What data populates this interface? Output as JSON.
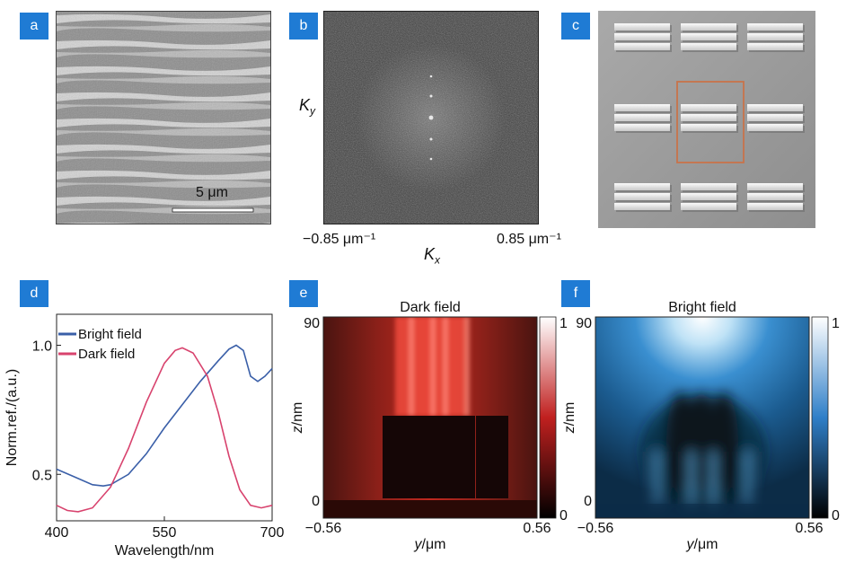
{
  "panels": {
    "a": {
      "tag": "a",
      "scale_bar_label": "5 μm"
    },
    "b": {
      "tag": "b",
      "ky_label": "K",
      "ky_sub": "y",
      "kx_label": "K",
      "kx_sub": "x",
      "kx_min": "−0.85 μm⁻¹",
      "kx_max": "0.85 μm⁻¹"
    },
    "c": {
      "tag": "c",
      "highlight_color": "#c8734a"
    },
    "d": {
      "tag": "d"
    },
    "e": {
      "tag": "e"
    },
    "f": {
      "tag": "f"
    }
  },
  "chart_data": [
    {
      "type": "line",
      "panel": "d",
      "xlabel": "Wavelength/nm",
      "ylabel": "Norm.ref./(a.u.)",
      "xlim": [
        400,
        700
      ],
      "ylim": [
        0.32,
        1.12
      ],
      "xticks": [
        "400",
        "550",
        "700"
      ],
      "yticks": [
        "0.5",
        "1.0"
      ],
      "legend_position": "top-left",
      "series": [
        {
          "name": "Bright field",
          "color": "#3a5fa8",
          "x": [
            400,
            425,
            450,
            465,
            475,
            500,
            525,
            550,
            575,
            600,
            625,
            640,
            650,
            660,
            670,
            680,
            690,
            700
          ],
          "y": [
            0.52,
            0.49,
            0.46,
            0.455,
            0.46,
            0.5,
            0.58,
            0.68,
            0.77,
            0.86,
            0.94,
            0.985,
            1.0,
            0.98,
            0.88,
            0.86,
            0.88,
            0.91
          ]
        },
        {
          "name": "Dark field",
          "color": "#d8436e",
          "x": [
            400,
            415,
            430,
            450,
            475,
            500,
            525,
            550,
            565,
            575,
            590,
            610,
            625,
            640,
            655,
            670,
            685,
            700
          ],
          "y": [
            0.38,
            0.36,
            0.355,
            0.37,
            0.45,
            0.6,
            0.78,
            0.93,
            0.98,
            0.99,
            0.97,
            0.88,
            0.74,
            0.57,
            0.44,
            0.38,
            0.37,
            0.38
          ]
        }
      ]
    },
    {
      "type": "heatmap",
      "panel": "e",
      "title": "Dark field",
      "xlabel": "y/μm",
      "ylabel": "z/nm",
      "xlim": [
        -0.56,
        0.56
      ],
      "ylim": [
        0,
        90
      ],
      "xticks": [
        "−0.56",
        "0.56"
      ],
      "yticks": [
        "0",
        "90"
      ],
      "colorbar": {
        "ticks": [
          "0",
          "1"
        ],
        "colors": [
          "#000000",
          "#c0201f",
          "#ffffff"
        ]
      }
    },
    {
      "type": "heatmap",
      "panel": "f",
      "title": "Bright field",
      "xlabel": "y/μm",
      "ylabel": "z/nm",
      "xlim": [
        -0.56,
        0.56
      ],
      "ylim": [
        0,
        90
      ],
      "xticks": [
        "−0.56",
        "0.56"
      ],
      "yticks": [
        "0",
        "90"
      ],
      "colorbar": {
        "ticks": [
          "0",
          "1"
        ],
        "colors": [
          "#000000",
          "#2f7fc8",
          "#ffffff"
        ]
      }
    }
  ]
}
